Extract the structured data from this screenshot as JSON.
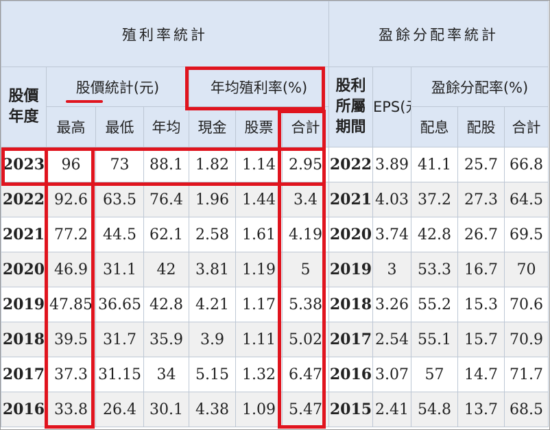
{
  "table": {
    "left_title": "殖利率統計",
    "right_title": "盈餘分配率統計",
    "stock_year_label": "股價年度",
    "price_stats_label": "股價統計(元)",
    "avg_yield_label": "年均殖利率(%)",
    "dividend_period_label": "股利所屬期間",
    "eps_label": "EPS(元)",
    "payout_label": "盈餘分配率(%)",
    "col_high": "最高",
    "col_low": "最低",
    "col_avg": "年均",
    "col_cash": "現金",
    "col_stock": "股票",
    "col_total": "合計",
    "col_pay_cash": "配息",
    "col_pay_stock": "配股",
    "col_pay_total": "合計",
    "rows": [
      {
        "year": "2023",
        "high": "96",
        "low": "73",
        "avg": "88.1",
        "cash": "1.82",
        "stock": "1.14",
        "total": "2.95",
        "period": "2022",
        "eps": "3.89",
        "pcash": "41.1",
        "pstock": "25.7",
        "ptotal": "66.8"
      },
      {
        "year": "2022",
        "high": "92.6",
        "low": "63.5",
        "avg": "76.4",
        "cash": "1.96",
        "stock": "1.44",
        "total": "3.4",
        "period": "2021",
        "eps": "4.03",
        "pcash": "37.2",
        "pstock": "27.3",
        "ptotal": "64.5"
      },
      {
        "year": "2021",
        "high": "77.2",
        "low": "44.5",
        "avg": "62.1",
        "cash": "2.58",
        "stock": "1.61",
        "total": "4.19",
        "period": "2020",
        "eps": "3.74",
        "pcash": "42.8",
        "pstock": "26.7",
        "ptotal": "69.5"
      },
      {
        "year": "2020",
        "high": "46.9",
        "low": "31.1",
        "avg": "42",
        "cash": "3.81",
        "stock": "1.19",
        "total": "5",
        "period": "2019",
        "eps": "3",
        "pcash": "53.3",
        "pstock": "16.7",
        "ptotal": "70"
      },
      {
        "year": "2019",
        "high": "47.85",
        "low": "36.65",
        "avg": "42.8",
        "cash": "4.21",
        "stock": "1.17",
        "total": "5.38",
        "period": "2018",
        "eps": "3.26",
        "pcash": "55.2",
        "pstock": "15.3",
        "ptotal": "70.6"
      },
      {
        "year": "2018",
        "high": "39.5",
        "low": "31.7",
        "avg": "35.9",
        "cash": "3.9",
        "stock": "1.11",
        "total": "5.02",
        "period": "2017",
        "eps": "2.54",
        "pcash": "55.1",
        "pstock": "15.7",
        "ptotal": "70.9"
      },
      {
        "year": "2017",
        "high": "37.3",
        "low": "31.15",
        "avg": "34",
        "cash": "5.15",
        "stock": "1.32",
        "total": "6.47",
        "period": "2016",
        "eps": "3.07",
        "pcash": "57",
        "pstock": "14.7",
        "ptotal": "71.7"
      },
      {
        "year": "2016",
        "high": "33.8",
        "low": "26.4",
        "avg": "30.1",
        "cash": "4.38",
        "stock": "1.09",
        "total": "5.47",
        "period": "2015",
        "eps": "2.41",
        "pcash": "54.8",
        "pstock": "13.7",
        "ptotal": "68.5"
      }
    ]
  },
  "colors": {
    "highlight": "#e0141e",
    "header_bg": "#dce6f4",
    "stripe": "#f0f0f0"
  }
}
